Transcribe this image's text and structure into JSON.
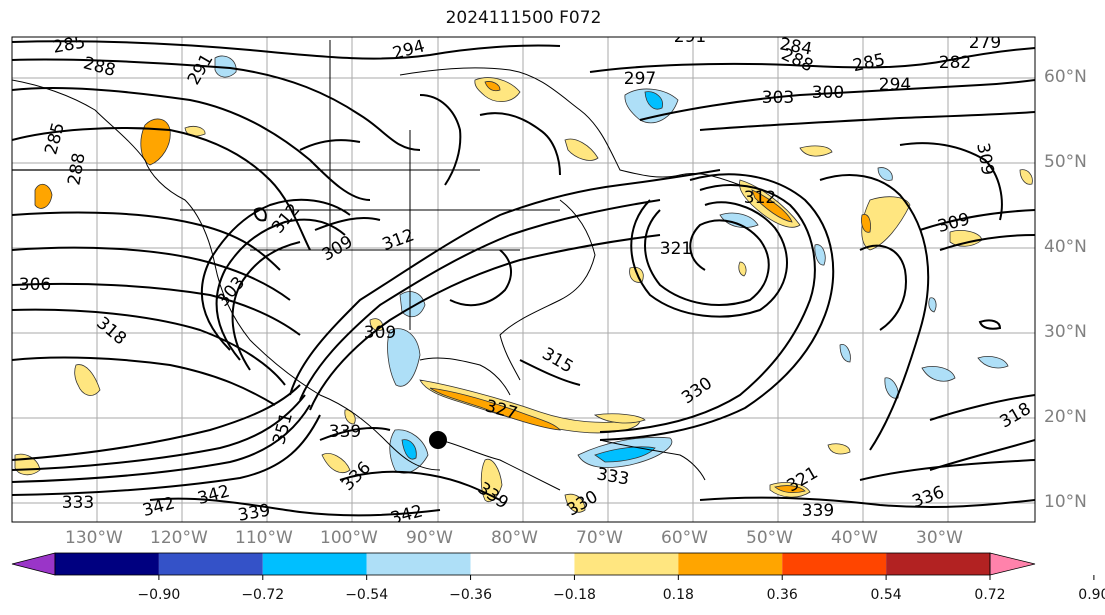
{
  "title": "2024111500 F072",
  "lon_labels": [
    "130°W",
    "120°W",
    "110°W",
    "100°W",
    "90°W",
    "80°W",
    "70°W",
    "60°W",
    "50°W",
    "40°W",
    "30°W"
  ],
  "lat_labels": [
    "60°N",
    "50°N",
    "40°N",
    "30°N",
    "20°N",
    "10°N"
  ],
  "colorbar": {
    "ticks": [
      "−0.90",
      "−0.72",
      "−0.54",
      "−0.36",
      "−0.18",
      "0.18",
      "0.36",
      "0.54",
      "0.72",
      "0.90"
    ],
    "colors": [
      "#9a35c8",
      "#000080",
      "#3452c8",
      "#00bfff",
      "#aedff7",
      "#ffffff",
      "#ffe680",
      "#ffa500",
      "#ff4500",
      "#b22222",
      "#ff82ab"
    ]
  },
  "contour_labels": [
    {
      "text": "285"
    },
    {
      "text": "288"
    },
    {
      "text": "291"
    },
    {
      "text": "294"
    },
    {
      "text": "297"
    },
    {
      "text": "291"
    },
    {
      "text": "284"
    },
    {
      "text": "288"
    },
    {
      "text": "285"
    },
    {
      "text": "279"
    },
    {
      "text": "282"
    },
    {
      "text": "294"
    },
    {
      "text": "303"
    },
    {
      "text": "300"
    },
    {
      "text": "285"
    },
    {
      "text": "288"
    },
    {
      "text": "309"
    },
    {
      "text": "312"
    },
    {
      "text": "309"
    },
    {
      "text": "321"
    },
    {
      "text": "312"
    },
    {
      "text": "309"
    },
    {
      "text": "303"
    },
    {
      "text": "306"
    },
    {
      "text": "312"
    },
    {
      "text": "318"
    },
    {
      "text": "309"
    },
    {
      "text": "315"
    },
    {
      "text": "330"
    },
    {
      "text": "327"
    },
    {
      "text": "318"
    },
    {
      "text": "339"
    },
    {
      "text": "336"
    },
    {
      "text": "333"
    },
    {
      "text": "321"
    },
    {
      "text": "336"
    },
    {
      "text": "339"
    },
    {
      "text": "342"
    },
    {
      "text": "342"
    },
    {
      "text": "333"
    },
    {
      "text": "339"
    },
    {
      "text": "330"
    },
    {
      "text": "342"
    },
    {
      "text": "339"
    },
    {
      "text": "351"
    }
  ]
}
